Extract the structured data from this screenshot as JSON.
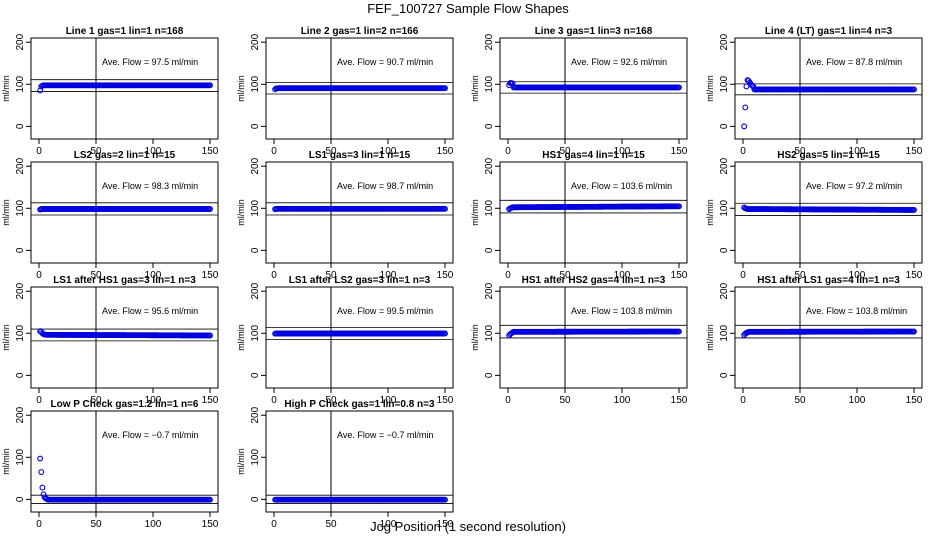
{
  "title": "FEF_100727  Sample Flow Shapes",
  "xlabel": "Jog Position (1 second resolution)",
  "chart_data": [
    {
      "type": "scatter",
      "title": "Line 1 gas=1 lin=1 n=168",
      "ylabel": "ml/min",
      "annotation": "Ave. Flow =  97.5  ml/min",
      "xlim": [
        0,
        150
      ],
      "ylim": [
        -30,
        210
      ],
      "xticks": [
        0,
        50,
        100,
        150
      ],
      "yticks": [
        0,
        100,
        200
      ],
      "vline": 50,
      "hlines": [
        83,
        111
      ],
      "shape": {
        "start": [
          85,
          95,
          97
        ],
        "level": 97.5,
        "end": 97.5
      }
    },
    {
      "type": "scatter",
      "title": "Line 2 gas=1 lin=2 n=166",
      "ylabel": "ml/min",
      "annotation": "Ave. Flow =  90.7  ml/min",
      "xlim": [
        0,
        150
      ],
      "ylim": [
        -30,
        210
      ],
      "xticks": [
        0,
        50,
        100,
        150
      ],
      "yticks": [
        0,
        100,
        200
      ],
      "vline": 50,
      "hlines": [
        77,
        104
      ],
      "shape": {
        "start": [
          88,
          90,
          90.5
        ],
        "level": 90.7,
        "end": 90.7
      }
    },
    {
      "type": "scatter",
      "title": "Line 3 gas=1 lin=3 n=168",
      "ylabel": "ml/min",
      "annotation": "Ave. Flow =  92.6  ml/min",
      "xlim": [
        0,
        150
      ],
      "ylim": [
        -30,
        210
      ],
      "xticks": [
        0,
        50,
        100,
        150
      ],
      "yticks": [
        0,
        100,
        200
      ],
      "vline": 50,
      "hlines": [
        79,
        106
      ],
      "shape": {
        "start": [
          98,
          103,
          103,
          102
        ],
        "level": 92.6,
        "end": 92.6
      }
    },
    {
      "type": "scatter",
      "title": "Line 4 (LT) gas=1 lin=4 n=3",
      "ylabel": "ml/min",
      "annotation": "Ave. Flow =  87.8  ml/min",
      "xlim": [
        0,
        150
      ],
      "ylim": [
        -30,
        210
      ],
      "xticks": [
        0,
        50,
        100,
        150
      ],
      "yticks": [
        0,
        100,
        200
      ],
      "vline": 50,
      "hlines": [
        75,
        101
      ],
      "shape": {
        "start": [
          0,
          45,
          95,
          110,
          108,
          104,
          100,
          97,
          95
        ],
        "level": 87.8,
        "end": 87.8
      }
    },
    {
      "type": "scatter",
      "title": "LS2 gas=2 lin=1 n=15",
      "ylabel": "ml/min",
      "annotation": "Ave. Flow =  98.3  ml/min",
      "xlim": [
        0,
        150
      ],
      "ylim": [
        -30,
        210
      ],
      "xticks": [
        0,
        50,
        100,
        150
      ],
      "yticks": [
        0,
        100,
        200
      ],
      "vline": 50,
      "hlines": [
        84,
        113
      ],
      "shape": {
        "start": [
          97,
          98
        ],
        "level": 98.3,
        "end": 98.3
      }
    },
    {
      "type": "scatter",
      "title": "LS1 gas=3 lin=1 n=15",
      "ylabel": "ml/min",
      "annotation": "Ave. Flow =  98.7  ml/min",
      "xlim": [
        0,
        150
      ],
      "ylim": [
        -30,
        210
      ],
      "xticks": [
        0,
        50,
        100,
        150
      ],
      "yticks": [
        0,
        100,
        200
      ],
      "vline": 50,
      "hlines": [
        84,
        113
      ],
      "shape": {
        "start": [
          98,
          98.5
        ],
        "level": 98.7,
        "end": 98.7
      }
    },
    {
      "type": "scatter",
      "title": "HS1 gas=4 lin=1 n=15",
      "ylabel": "ml/min",
      "annotation": "Ave. Flow =  103.6  ml/min",
      "xlim": [
        0,
        150
      ],
      "ylim": [
        -30,
        210
      ],
      "xticks": [
        0,
        50,
        100,
        150
      ],
      "yticks": [
        0,
        100,
        200
      ],
      "vline": 50,
      "hlines": [
        89,
        119
      ],
      "shape": {
        "start": [
          98,
          100,
          101
        ],
        "level": 103.6,
        "end": 106
      }
    },
    {
      "type": "scatter",
      "title": "HS2 gas=5 lin=1 n=15",
      "ylabel": "ml/min",
      "annotation": "Ave. Flow =  97.2  ml/min",
      "xlim": [
        0,
        150
      ],
      "ylim": [
        -30,
        210
      ],
      "xticks": [
        0,
        50,
        100,
        150
      ],
      "yticks": [
        0,
        100,
        200
      ],
      "vline": 50,
      "hlines": [
        83,
        112
      ],
      "shape": {
        "start": [
          102,
          100,
          99
        ],
        "level": 97.2,
        "end": 95
      }
    },
    {
      "type": "scatter",
      "title": "LS1 after HS1 gas=3 lin=1 n=3",
      "ylabel": "ml/min",
      "annotation": "Ave. Flow =  95.6  ml/min",
      "xlim": [
        0,
        150
      ],
      "ylim": [
        -30,
        210
      ],
      "xticks": [
        0,
        50,
        100,
        150
      ],
      "yticks": [
        0,
        100,
        200
      ],
      "vline": 50,
      "hlines": [
        82,
        110
      ],
      "shape": {
        "start": [
          105,
          103,
          100,
          98,
          97
        ],
        "level": 95.6,
        "end": 94
      }
    },
    {
      "type": "scatter",
      "title": "LS1 after LS2 gas=3 lin=1 n=3",
      "ylabel": "ml/min",
      "annotation": "Ave. Flow =  99.5  ml/min",
      "xlim": [
        0,
        150
      ],
      "ylim": [
        -30,
        210
      ],
      "xticks": [
        0,
        50,
        100,
        150
      ],
      "yticks": [
        0,
        100,
        200
      ],
      "vline": 50,
      "hlines": [
        85,
        114
      ],
      "shape": {
        "start": [
          99,
          99.5
        ],
        "level": 99.5,
        "end": 99.5
      }
    },
    {
      "type": "scatter",
      "title": "HS1 after HS2 gas=4 lin=1 n=3",
      "ylabel": "ml/min",
      "annotation": "Ave. Flow =  103.8  ml/min",
      "xlim": [
        0,
        150
      ],
      "ylim": [
        -30,
        210
      ],
      "xticks": [
        0,
        50,
        100,
        150
      ],
      "yticks": [
        0,
        100,
        200
      ],
      "vline": 50,
      "hlines": [
        89,
        119
      ],
      "shape": {
        "start": [
          95,
          98,
          100,
          102
        ],
        "level": 103.8,
        "end": 104.5
      }
    },
    {
      "type": "scatter",
      "title": "HS1 after LS1 gas=4 lin=1 n=3",
      "ylabel": "ml/min",
      "annotation": "Ave. Flow =  103.8  ml/min",
      "xlim": [
        0,
        150
      ],
      "ylim": [
        -30,
        210
      ],
      "xticks": [
        0,
        50,
        100,
        150
      ],
      "yticks": [
        0,
        100,
        200
      ],
      "vline": 50,
      "hlines": [
        89,
        119
      ],
      "shape": {
        "start": [
          96,
          99,
          101,
          102
        ],
        "level": 103.8,
        "end": 104.5
      }
    },
    {
      "type": "scatter",
      "title": "Low P Check gas=1.2 lin=1 n=6",
      "ylabel": "ml/min",
      "annotation": "Ave. Flow =  −0.7  ml/min",
      "xlim": [
        0,
        150
      ],
      "ylim": [
        -30,
        210
      ],
      "xticks": [
        0,
        50,
        100,
        150
      ],
      "yticks": [
        0,
        100,
        200
      ],
      "vline": 50,
      "hlines": [
        -10,
        10
      ],
      "shape": {
        "start": [
          97,
          65,
          28,
          12,
          5,
          2,
          1
        ],
        "level": -0.7,
        "end": -0.7
      }
    },
    {
      "type": "scatter",
      "title": "High P Check gas=1 lin=0.8 n=3",
      "ylabel": "ml/min",
      "annotation": "Ave. Flow =  −0.7  ml/min",
      "xlim": [
        0,
        150
      ],
      "ylim": [
        -30,
        210
      ],
      "xticks": [
        0,
        50,
        100,
        150
      ],
      "yticks": [
        0,
        100,
        200
      ],
      "vline": 50,
      "hlines": [
        -10,
        10
      ],
      "shape": {
        "start": [
          -0.7
        ],
        "level": -0.7,
        "end": -0.7
      }
    }
  ]
}
